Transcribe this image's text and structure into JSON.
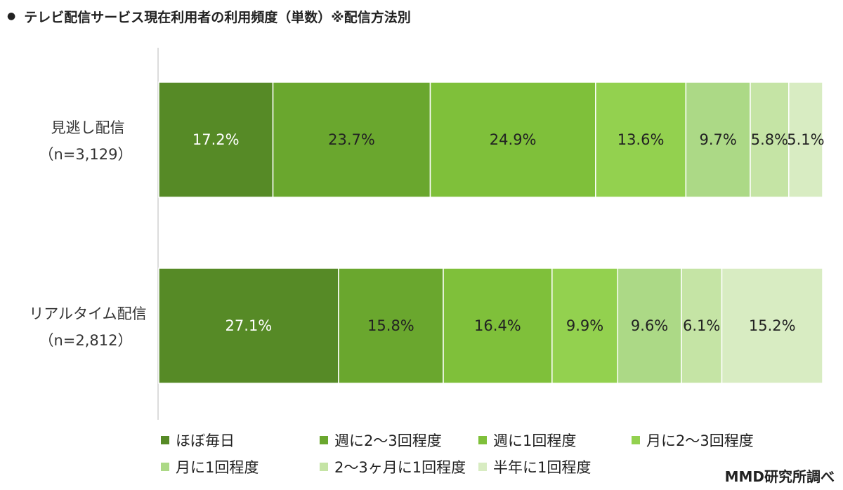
{
  "title_bullet": "●",
  "title": "テレビ配信サービス現在利用者の利用頻度（単数）※配信方法別",
  "source_note": "MMD研究所調べ",
  "chart_data": {
    "type": "bar",
    "orientation": "horizontal",
    "stacked": true,
    "percent": true,
    "xlim": [
      0,
      100
    ],
    "grid": false,
    "legend_position": "bottom",
    "categories": [
      {
        "name": "見逃し配信",
        "n": "（n=3,129）"
      },
      {
        "name": "リアルタイム配信",
        "n": "（n=2,812）"
      }
    ],
    "series": [
      {
        "name": "ほぼ毎日",
        "color": "#568a26",
        "text_color": "#ffffff",
        "values": [
          17.2,
          27.1
        ],
        "labels": [
          "17.2%",
          "27.1%"
        ]
      },
      {
        "name": "週に2～3回程度",
        "color": "#6aa72e",
        "text_color": "#222222",
        "values": [
          23.7,
          15.8
        ],
        "labels": [
          "23.7%",
          "15.8%"
        ]
      },
      {
        "name": "週に1回程度",
        "color": "#7fc03a",
        "text_color": "#222222",
        "values": [
          24.9,
          16.4
        ],
        "labels": [
          "24.9%",
          "16.4%"
        ]
      },
      {
        "name": "月に2～3回程度",
        "color": "#93d14f",
        "text_color": "#222222",
        "values": [
          13.6,
          9.9
        ],
        "labels": [
          "13.6%",
          "9.9%"
        ]
      },
      {
        "name": "月に1回程度",
        "color": "#acd986",
        "text_color": "#222222",
        "values": [
          9.7,
          9.6
        ],
        "labels": [
          "9.7%",
          "9.6%"
        ]
      },
      {
        "name": "2～3ヶ月に1回程度",
        "color": "#c5e4a5",
        "text_color": "#222222",
        "values": [
          5.8,
          6.1
        ],
        "labels": [
          "5.8%",
          "6.1%"
        ]
      },
      {
        "name": "半年に1回程度",
        "color": "#d8ecc2",
        "text_color": "#222222",
        "values": [
          5.1,
          15.2
        ],
        "labels": [
          "5.1%",
          "15.2%"
        ]
      }
    ]
  }
}
